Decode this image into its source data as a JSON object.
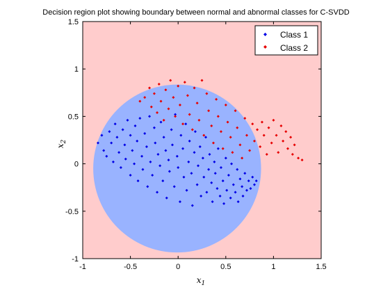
{
  "chart_data": {
    "type": "scatter",
    "title": "Decision region plot showing boundary between normal and abnormal classes for C-SVDD",
    "xlabel": "x1",
    "ylabel": "x2",
    "xlim": [
      -1,
      1.5
    ],
    "ylim": [
      -1,
      1.5
    ],
    "xticks": [
      "-1",
      "-0.5",
      "0",
      "0.5",
      "1",
      "1.5"
    ],
    "yticks": [
      "-1",
      "-0.5",
      "0",
      "0.5",
      "1",
      "1.5"
    ],
    "grid": false,
    "legend_position": "top-right",
    "colors": {
      "region_abnormal": "#ffcccc",
      "region_normal": "#99b3ff",
      "class1": "#0000e6",
      "class2": "#e60000"
    },
    "decision_boundary": {
      "shape": "circle",
      "center": [
        -0.01,
        -0.05
      ],
      "radius": 0.88
    },
    "series": [
      {
        "name": "Class 1",
        "points": [
          [
            -0.84,
            0.22
          ],
          [
            -0.8,
            0.3
          ],
          [
            -0.78,
            0.14
          ],
          [
            -0.75,
            0.08
          ],
          [
            -0.72,
            0.34
          ],
          [
            -0.7,
            0.22
          ],
          [
            -0.68,
            0.02
          ],
          [
            -0.66,
            0.42
          ],
          [
            -0.64,
            0.28
          ],
          [
            -0.62,
            0.12
          ],
          [
            -0.6,
            -0.04
          ],
          [
            -0.58,
            0.36
          ],
          [
            -0.56,
            0.2
          ],
          [
            -0.55,
            0.05
          ],
          [
            -0.53,
            0.46
          ],
          [
            -0.5,
            0.3
          ],
          [
            -0.5,
            -0.12
          ],
          [
            -0.48,
            0.14
          ],
          [
            -0.46,
            0.0
          ],
          [
            -0.45,
            0.4
          ],
          [
            -0.43,
            0.24
          ],
          [
            -0.42,
            -0.18
          ],
          [
            -0.4,
            0.48
          ],
          [
            -0.38,
            0.08
          ],
          [
            -0.37,
            -0.06
          ],
          [
            -0.35,
            0.32
          ],
          [
            -0.33,
            0.18
          ],
          [
            -0.32,
            -0.24
          ],
          [
            -0.3,
            0.5
          ],
          [
            -0.29,
            0.02
          ],
          [
            -0.27,
            -0.12
          ],
          [
            -0.25,
            0.38
          ],
          [
            -0.24,
            0.22
          ],
          [
            -0.22,
            -0.3
          ],
          [
            -0.21,
            0.1
          ],
          [
            -0.19,
            -0.02
          ],
          [
            -0.18,
            0.44
          ],
          [
            -0.16,
            -0.18
          ],
          [
            -0.15,
            0.28
          ],
          [
            -0.13,
            0.14
          ],
          [
            -0.12,
            -0.36
          ],
          [
            -0.1,
            0.04
          ],
          [
            -0.09,
            -0.08
          ],
          [
            -0.07,
            0.36
          ],
          [
            -0.06,
            0.2
          ],
          [
            -0.04,
            -0.24
          ],
          [
            -0.03,
            0.52
          ],
          [
            -0.01,
            0.08
          ],
          [
            0.0,
            -0.04
          ],
          [
            0.02,
            -0.4
          ],
          [
            0.03,
            0.3
          ],
          [
            0.05,
            0.16
          ],
          [
            0.06,
            -0.14
          ],
          [
            0.08,
            0.42
          ],
          [
            0.09,
            -0.28
          ],
          [
            0.11,
            0.02
          ],
          [
            0.12,
            0.24
          ],
          [
            0.14,
            -0.1
          ],
          [
            0.15,
            -0.44
          ],
          [
            0.17,
            0.12
          ],
          [
            0.18,
            0.34
          ],
          [
            0.2,
            -0.22
          ],
          [
            0.21,
            -0.02
          ],
          [
            0.23,
            0.18
          ],
          [
            0.24,
            -0.34
          ],
          [
            0.26,
            0.06
          ],
          [
            0.27,
            -0.14
          ],
          [
            0.29,
            0.28
          ],
          [
            0.3,
            -0.3
          ],
          [
            0.32,
            -0.06
          ],
          [
            0.33,
            0.1
          ],
          [
            0.35,
            -0.2
          ],
          [
            0.36,
            -0.4
          ],
          [
            0.38,
            0.02
          ],
          [
            0.39,
            -0.1
          ],
          [
            0.41,
            -0.26
          ],
          [
            0.42,
            0.16
          ],
          [
            0.44,
            -0.34
          ],
          [
            0.45,
            -0.04
          ],
          [
            0.47,
            -0.18
          ],
          [
            0.48,
            -0.42
          ],
          [
            0.5,
            0.06
          ],
          [
            0.51,
            -0.28
          ],
          [
            0.53,
            -0.12
          ],
          [
            0.55,
            -0.36
          ],
          [
            0.56,
            0.0
          ],
          [
            0.58,
            -0.22
          ],
          [
            0.6,
            -0.3
          ],
          [
            0.62,
            -0.06
          ],
          [
            0.63,
            -0.4
          ],
          [
            0.65,
            -0.16
          ],
          [
            0.67,
            -0.24
          ],
          [
            0.68,
            -0.34
          ],
          [
            0.7,
            -0.1
          ],
          [
            0.72,
            -0.28
          ],
          [
            0.74,
            -0.18
          ],
          [
            0.76,
            -0.26
          ],
          [
            0.78,
            -0.14
          ],
          [
            0.8,
            -0.22
          ],
          [
            0.82,
            -0.18
          ]
        ]
      },
      {
        "name": "Class 2",
        "points": [
          [
            -0.4,
            0.66
          ],
          [
            -0.35,
            0.7
          ],
          [
            -0.3,
            0.8
          ],
          [
            -0.28,
            0.6
          ],
          [
            -0.25,
            0.74
          ],
          [
            -0.22,
            0.54
          ],
          [
            -0.2,
            0.84
          ],
          [
            -0.18,
            0.66
          ],
          [
            -0.15,
            0.46
          ],
          [
            -0.13,
            0.78
          ],
          [
            -0.1,
            0.58
          ],
          [
            -0.08,
            0.88
          ],
          [
            -0.05,
            0.7
          ],
          [
            -0.03,
            0.5
          ],
          [
            0.0,
            0.82
          ],
          [
            0.02,
            0.62
          ],
          [
            0.05,
            0.42
          ],
          [
            0.07,
            0.86
          ],
          [
            0.1,
            0.72
          ],
          [
            0.12,
            0.52
          ],
          [
            0.15,
            0.36
          ],
          [
            0.17,
            0.8
          ],
          [
            0.2,
            0.64
          ],
          [
            0.22,
            0.46
          ],
          [
            0.25,
            0.88
          ],
          [
            0.27,
            0.3
          ],
          [
            0.3,
            0.74
          ],
          [
            0.32,
            0.56
          ],
          [
            0.35,
            0.4
          ],
          [
            0.37,
            0.22
          ],
          [
            0.4,
            0.68
          ],
          [
            0.42,
            0.5
          ],
          [
            0.45,
            0.34
          ],
          [
            0.47,
            0.16
          ],
          [
            0.5,
            0.62
          ],
          [
            0.52,
            0.44
          ],
          [
            0.55,
            0.28
          ],
          [
            0.57,
            0.12
          ],
          [
            0.6,
            0.56
          ],
          [
            0.62,
            0.38
          ],
          [
            0.65,
            0.2
          ],
          [
            0.67,
            0.06
          ],
          [
            0.7,
            0.48
          ],
          [
            0.72,
            0.3
          ],
          [
            0.75,
            0.14
          ],
          [
            0.78,
            0.42
          ],
          [
            0.8,
            0.24
          ],
          [
            0.83,
            0.36
          ],
          [
            0.86,
            0.18
          ],
          [
            0.88,
            0.44
          ],
          [
            0.9,
            0.3
          ],
          [
            0.93,
            0.1
          ],
          [
            0.95,
            0.38
          ],
          [
            0.98,
            0.22
          ],
          [
            1.0,
            0.46
          ],
          [
            1.03,
            0.3
          ],
          [
            1.05,
            0.12
          ],
          [
            1.08,
            0.4
          ],
          [
            1.1,
            0.24
          ],
          [
            1.13,
            0.34
          ],
          [
            1.15,
            0.16
          ],
          [
            1.18,
            0.28
          ],
          [
            1.2,
            0.1
          ],
          [
            1.22,
            0.2
          ],
          [
            1.26,
            0.06
          ],
          [
            1.3,
            0.04
          ]
        ]
      }
    ]
  }
}
